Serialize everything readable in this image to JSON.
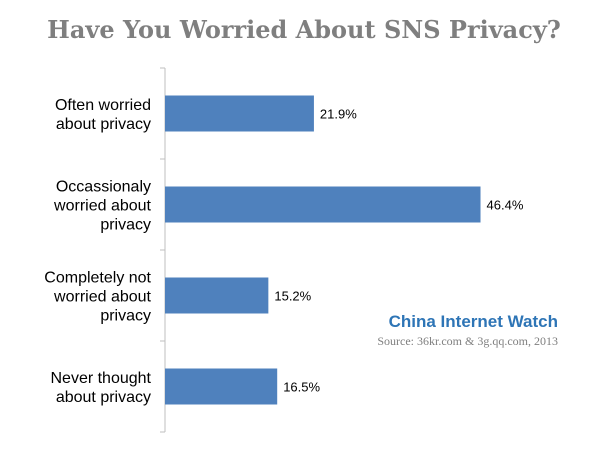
{
  "chart_data": {
    "type": "bar",
    "orientation": "horizontal",
    "title": "Have You Worried About SNS Privacy?",
    "categories": [
      [
        "Often worried",
        "about privacy"
      ],
      [
        "Occassionaly",
        "worried about",
        "privacy"
      ],
      [
        "Completely not",
        "worried about",
        "privacy"
      ],
      [
        "Never thought",
        "about privacy"
      ]
    ],
    "values": [
      21.9,
      46.4,
      15.2,
      16.5
    ],
    "value_labels": [
      "21.9%",
      "46.4%",
      "15.2%",
      "16.5%"
    ],
    "xlim": [
      0,
      50
    ],
    "grid": false,
    "legend": "none",
    "bar_color": "#4f81bd",
    "axis_color": "#bfbfbf"
  },
  "watermark": {
    "brand": "China Internet Watch",
    "source": "Source: 36kr.com & 3g.qq.com, 2013",
    "brand_color": "#2e75b6"
  }
}
